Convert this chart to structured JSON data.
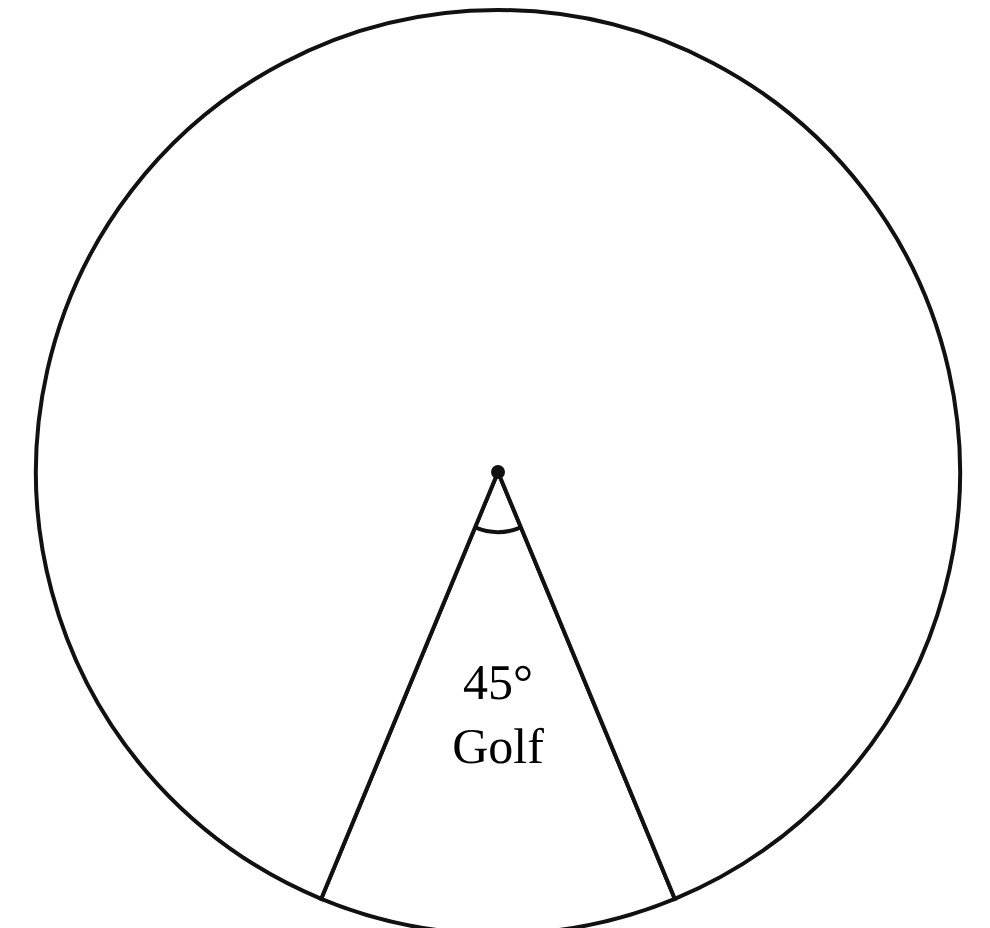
{
  "chart_data": {
    "type": "pie",
    "categories": [
      "Golf",
      null
    ],
    "values": [
      45,
      315
    ],
    "value_labels": [
      "45°",
      null
    ],
    "colors": [
      "#ffffff",
      "#ffffff"
    ]
  }
}
